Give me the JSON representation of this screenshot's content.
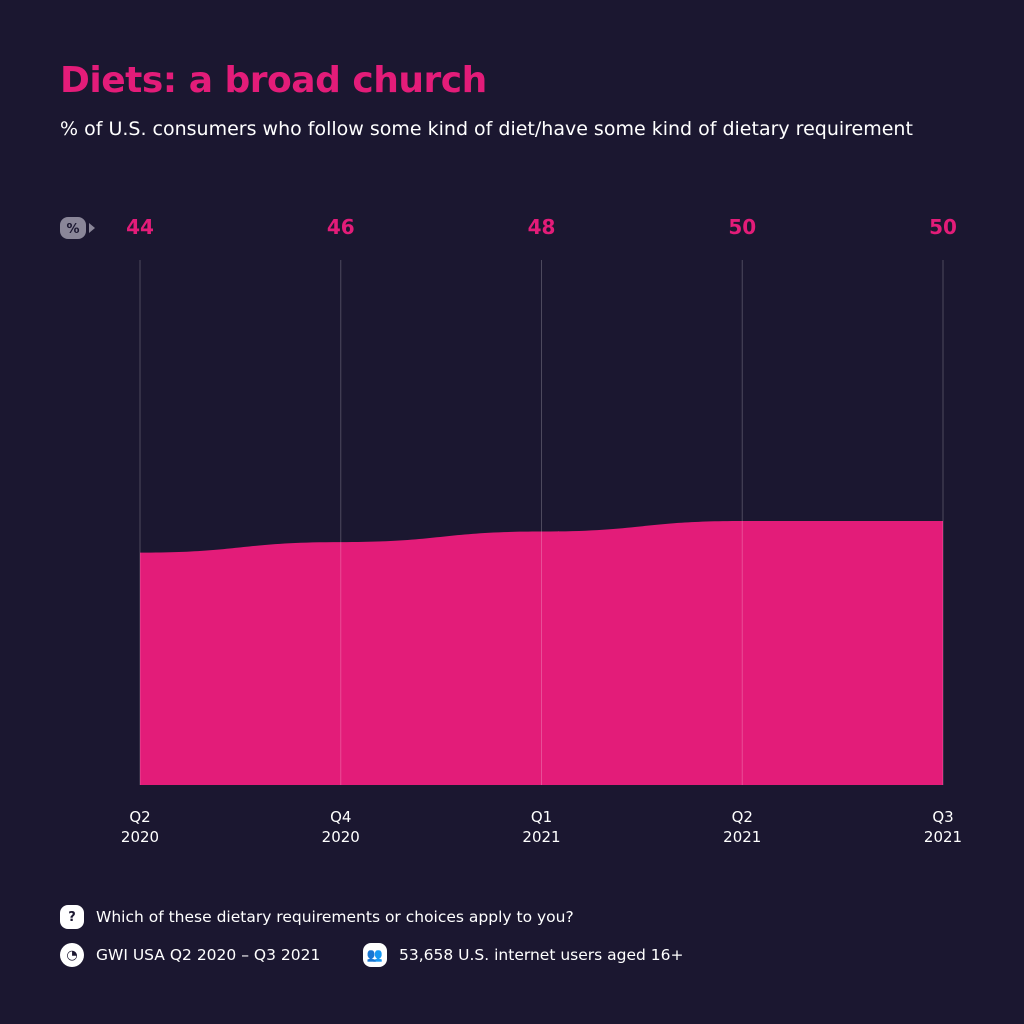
{
  "title": "Diets: a broad church",
  "subtitle": "% of U.S. consumers who follow some kind of diet/have some kind of dietary requirement",
  "unit_badge": "%",
  "chart_data": {
    "type": "area",
    "categories": [
      [
        "Q2",
        "2020"
      ],
      [
        "Q4",
        "2020"
      ],
      [
        "Q1",
        "2021"
      ],
      [
        "Q2",
        "2021"
      ],
      [
        "Q3",
        "2021"
      ]
    ],
    "values": [
      44,
      46,
      48,
      50,
      50
    ],
    "ylim": [
      0,
      100
    ],
    "grid": "vertical",
    "color": "#e31c79"
  },
  "footer": {
    "question": "Which of these dietary requirements or choices apply to you?",
    "source": "GWI USA Q2 2020 – Q3 2021",
    "sample": "53,658 U.S. internet users aged 16+",
    "question_icon": "?"
  }
}
